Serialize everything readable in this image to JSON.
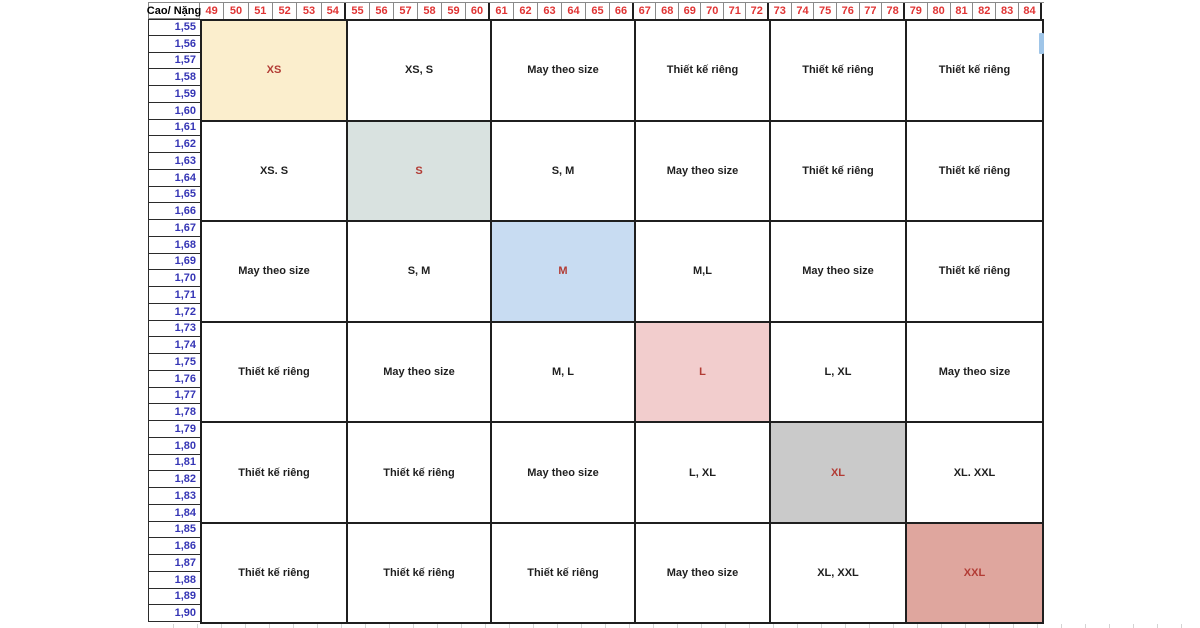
{
  "table": {
    "corner_label": "Cao/ Nặng",
    "weight_headers": [
      "49",
      "50",
      "51",
      "52",
      "53",
      "54",
      "55",
      "56",
      "57",
      "58",
      "59",
      "60",
      "61",
      "62",
      "63",
      "64",
      "65",
      "66",
      "67",
      "68",
      "69",
      "70",
      "71",
      "72",
      "73",
      "74",
      "75",
      "76",
      "77",
      "78",
      "79",
      "80",
      "81",
      "82",
      "83",
      "84"
    ],
    "height_rows": [
      "1,55",
      "1,56",
      "1,57",
      "1,58",
      "1,59",
      "1,60",
      "1,61",
      "1,62",
      "1,63",
      "1,64",
      "1,65",
      "1,66",
      "1,67",
      "1,68",
      "1,69",
      "1,70",
      "1,71",
      "1,72",
      "1,73",
      "1,74",
      "1,75",
      "1,76",
      "1,77",
      "1,78",
      "1,79",
      "1,80",
      "1,81",
      "1,82",
      "1,83",
      "1,84",
      "1,85",
      "1,86",
      "1,87",
      "1,88",
      "1,89",
      "1,90"
    ],
    "size_matrix": [
      [
        {
          "label": "XS",
          "highlight": "yellow"
        },
        {
          "label": "XS, S",
          "highlight": null
        },
        {
          "label": "May theo size",
          "highlight": null
        },
        {
          "label": "Thiết kế riêng",
          "highlight": null
        },
        {
          "label": "Thiết kế riêng",
          "highlight": null
        },
        {
          "label": "Thiết kế riêng",
          "highlight": null
        }
      ],
      [
        {
          "label": "XS. S",
          "highlight": null
        },
        {
          "label": "S",
          "highlight": "sage"
        },
        {
          "label": "S, M",
          "highlight": null
        },
        {
          "label": "May theo size",
          "highlight": null
        },
        {
          "label": "Thiết kế riêng",
          "highlight": null
        },
        {
          "label": "Thiết kế riêng",
          "highlight": null
        }
      ],
      [
        {
          "label": "May theo size",
          "highlight": null
        },
        {
          "label": "S, M",
          "highlight": null
        },
        {
          "label": "M",
          "highlight": "blue"
        },
        {
          "label": "M,L",
          "highlight": null
        },
        {
          "label": "May theo size",
          "highlight": null
        },
        {
          "label": "Thiết kế riêng",
          "highlight": null
        }
      ],
      [
        {
          "label": "Thiết kế riêng",
          "highlight": null
        },
        {
          "label": "May theo size",
          "highlight": null
        },
        {
          "label": "M, L",
          "highlight": null
        },
        {
          "label": "L",
          "highlight": "pink"
        },
        {
          "label": "L, XL",
          "highlight": null
        },
        {
          "label": "May theo size",
          "highlight": null
        }
      ],
      [
        {
          "label": "Thiết kế riêng",
          "highlight": null
        },
        {
          "label": "Thiết kế riêng",
          "highlight": null
        },
        {
          "label": "May theo size",
          "highlight": null
        },
        {
          "label": "L, XL",
          "highlight": null
        },
        {
          "label": "XL",
          "highlight": "grey"
        },
        {
          "label": "XL. XXL",
          "highlight": null
        }
      ],
      [
        {
          "label": "Thiết kế riêng",
          "highlight": null
        },
        {
          "label": "Thiết kế riêng",
          "highlight": null
        },
        {
          "label": "Thiết kế riêng",
          "highlight": null
        },
        {
          "label": "May theo size",
          "highlight": null
        },
        {
          "label": "XL, XXL",
          "highlight": null
        },
        {
          "label": "XXL",
          "highlight": "salmon"
        }
      ]
    ],
    "colors": {
      "header_text": "#e03434",
      "height_text": "#3535b5",
      "cell_text": "#1f1f1f",
      "highlight_text": "#b23b34",
      "highlights": {
        "yellow": "#fbeecd",
        "sage": "#d9e2e0",
        "blue": "#c8dcf2",
        "pink": "#f2cdcd",
        "grey": "#cacaca",
        "salmon": "#dfa69e"
      }
    }
  },
  "decorations": {
    "selection_handle_color": "#9fc5e8"
  }
}
